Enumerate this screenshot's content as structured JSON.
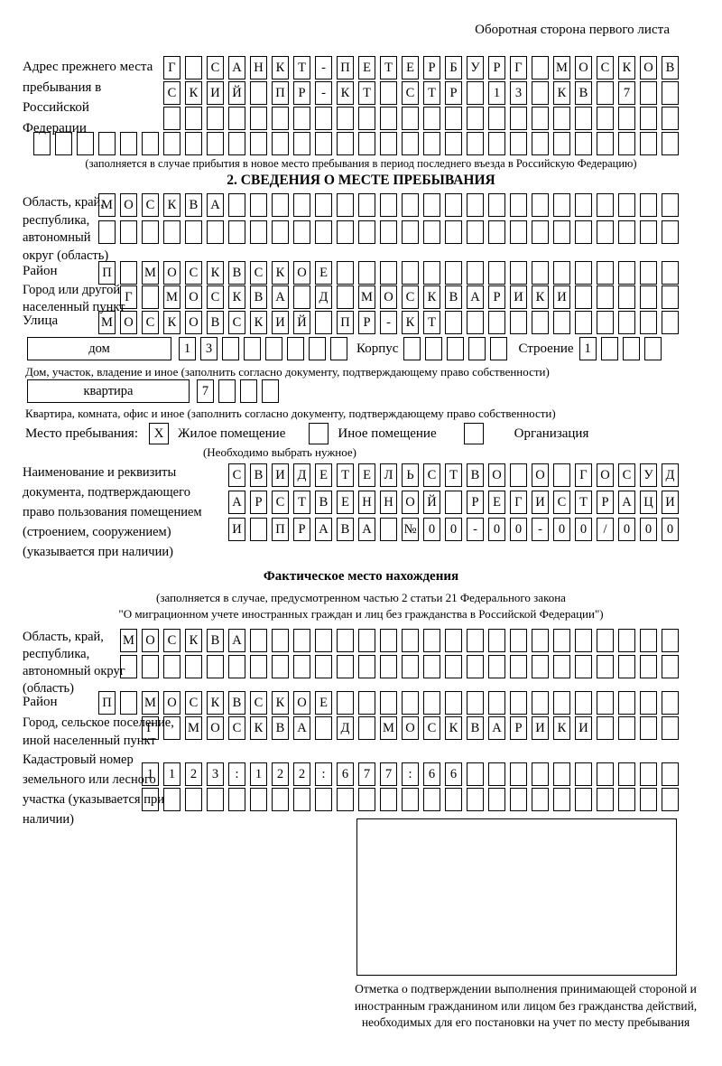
{
  "header": {
    "note": "Оборотная сторона первого листа"
  },
  "prev_address": {
    "label": "Адрес прежнего места пребывания в Российской Федерации",
    "rows": [
      {
        "chars": "Г САНКТ-ПЕТЕРБУРГ МОСКОВ",
        "len": 24
      },
      {
        "chars": "СКИЙ ПР-КТ СТР 13 КВ 7",
        "len": 24
      },
      {
        "chars": "",
        "len": 24
      },
      {
        "chars": "",
        "len": 30
      }
    ],
    "caption": "(заполняется в случае прибытия в новое место пребывания в период последнего въезда в Российскую Федерацию)"
  },
  "section2": {
    "title": "2. СВЕДЕНИЯ О МЕСТЕ ПРЕБЫВАНИЯ",
    "region": {
      "label": "Область, край, республика, автономный округ (область)",
      "row1": {
        "chars": "МОСКВА",
        "len": 27
      },
      "row2": {
        "chars": "",
        "len": 27
      }
    },
    "district": {
      "label": "Район",
      "row": {
        "chars": "П МОСКВСКОЕ",
        "len": 27
      }
    },
    "city": {
      "label": "Город или другой населенный пункт",
      "row": {
        "chars": "Г МОСКВА Д МОСКВАРИКИ",
        "len": 26
      }
    },
    "street": {
      "label": "Улица",
      "row": {
        "chars": "МОСКОВСКИЙ ПР-КТ",
        "len": 27
      }
    },
    "house": {
      "box_label": "дом",
      "cells": {
        "chars": "13",
        "len": 8
      },
      "korpus_label": "Корпус",
      "korpus_cells": {
        "chars": "",
        "len": 5
      },
      "stroenie_label": "Строение",
      "stroenie_cells": {
        "chars": "1",
        "len": 4
      },
      "caption": "Дом, участок, владение и иное (заполнить согласно документу, подтверждающему право собственности)"
    },
    "apartment": {
      "box_label": "квартира",
      "cells": {
        "chars": "7",
        "len": 4
      },
      "caption": "Квартира, комната, офис и иное (заполнить согласно документу, подтверждающему право собственности)"
    },
    "stay_type": {
      "label": "Место пребывания:",
      "options": [
        {
          "label": "Жилое помещение",
          "checked": "X"
        },
        {
          "label": "Иное помещение",
          "checked": ""
        },
        {
          "label": "Организация",
          "checked": ""
        }
      ],
      "note": "(Необходимо выбрать нужное)"
    },
    "document": {
      "label": "Наименование и реквизиты документа, подтверждающего право пользования помещением (строением, сооружением) (указывается при наличии)",
      "rows": [
        {
          "chars": "СВИДЕТЕЛЬСТВО О ГОСУД",
          "len": 21
        },
        {
          "chars": "АРСТВЕННОЙ РЕГИСТРАЦИ",
          "len": 21
        },
        {
          "chars": "И ПРАВА №00-00-00/000",
          "len": 21
        }
      ]
    }
  },
  "actual_location": {
    "title": "Фактическое место нахождения",
    "note1": "(заполняется в случае, предусмотренном частью 2 статьи 21 Федерального закона",
    "note2": "\"О миграционном учете иностранных граждан и лиц без гражданства в Российской Федерации\")",
    "region": {
      "label": "Область, край, республика, автономный округ (область)",
      "row1": {
        "chars": "МОСКВА",
        "len": 26
      },
      "row2": {
        "chars": "",
        "len": 26
      }
    },
    "district": {
      "label": "Район",
      "row": {
        "chars": "П МОСКВСКОЕ",
        "len": 27
      }
    },
    "city": {
      "label": "Город, сельское поселение, иной населенный пункт",
      "row": {
        "chars": "Г МОСКВА Д МОСКВАРИКИ",
        "len": 25
      }
    },
    "cadastral": {
      "label": "Кадастровый номер земельного или лесного участка (указывается при наличии)",
      "rows": [
        {
          "chars": "1123:122:677:66",
          "len": 25
        },
        {
          "chars": "",
          "len": 25
        }
      ]
    },
    "stamp_caption": "Отметка о подтверждении выполнения принимающей стороной и иностранным гражданином или лицом без гражданства действий, необходимых для его постановки на учет по месту пребывания"
  }
}
